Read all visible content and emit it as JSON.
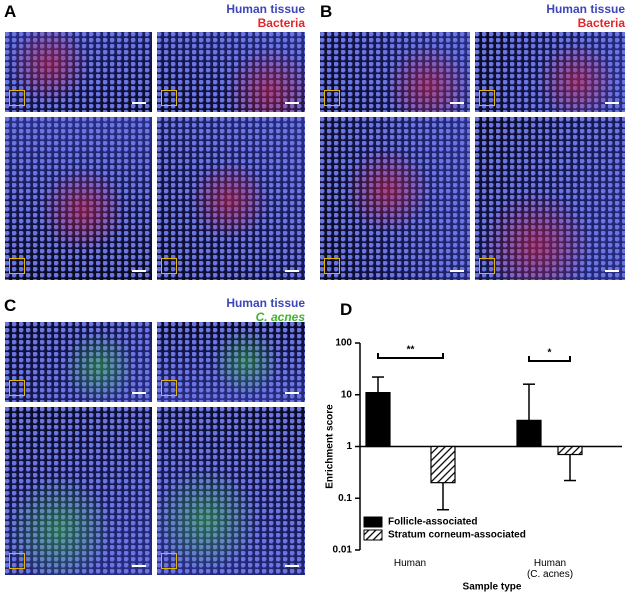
{
  "panels": {
    "A": {
      "label": "A",
      "legend": [
        "Human tissue",
        "Bacteria"
      ]
    },
    "B": {
      "label": "B",
      "legend": [
        "Human tissue",
        "Bacteria"
      ]
    },
    "C": {
      "label": "C",
      "legend": [
        "Human tissue",
        "C. acnes"
      ]
    }
  },
  "chart_data": {
    "type": "bar",
    "panel_label": "D",
    "categories": [
      "Human",
      "Human\n(C. acnes)"
    ],
    "series": [
      {
        "name": "Follicle-associated",
        "color": "#000000",
        "pattern": "solid",
        "values": [
          11,
          3.2
        ],
        "error_ends": [
          22,
          16
        ]
      },
      {
        "name": "Stratum corneum-associated",
        "color": "#ffffff",
        "pattern": "hatch",
        "values": [
          0.2,
          0.7
        ],
        "error_ends": [
          0.06,
          0.22
        ]
      }
    ],
    "xlabel": "Sample type",
    "ylabel": "Enrichment score",
    "ylim": [
      0.01,
      100
    ],
    "yticks": [
      100,
      10,
      1,
      0.1,
      0.01
    ],
    "log": true,
    "baseline": 1,
    "annotations": [
      {
        "text": "**"
      },
      {
        "text": "*"
      }
    ],
    "legend": "lower left"
  }
}
